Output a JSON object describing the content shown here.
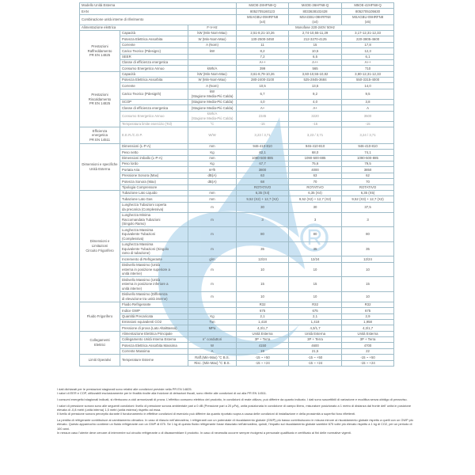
{
  "header": {
    "model_label": "Modello Unità Esterna",
    "models": [
      "M4OE-28HFN8-Q",
      "M4OE-36HFN8-Q",
      "M5OE-42HFN8-Q"
    ],
    "ean_label": "EAN",
    "eans": [
      "8052705160123",
      "8033638102428",
      "8052705105630"
    ],
    "combo_label": "Combinazione unità interne di riferimento",
    "combos": [
      "MSAGBU-09HRFN8\n(x4)",
      "MSAGBU-09HRFN8\n(x4)",
      "MSAGBU-09HRFN8\n(x5)"
    ],
    "power_label": "Alimentazione elettrica",
    "power_unit": "F-V-Hz",
    "power_value": "Monofase 220-240V 50Hz"
  },
  "sections": [
    {
      "title": "Prestazioni\nRaffreddamento\nPR EN 14825",
      "rows": [
        {
          "label": "Capacità",
          "unit": "kW (Min-Nom-Max)",
          "values": [
            "2,51-8,21-10,26",
            "2,74-10,55-11,29",
            "3,17-12,31-12,33"
          ]
        },
        {
          "label": "Potenza Elettrica Assorbita",
          "unit": "W (Min-Nom-Max)",
          "values": [
            "130-2500-3450",
            "212-3270-4125",
            "220-3805-4600"
          ]
        },
        {
          "label": "Corrente",
          "unit": "A (Nom)",
          "values": [
            "11",
            "15",
            "17,8"
          ]
        },
        {
          "label": "Carico Teorico (Pdesignc)",
          "unit": "kW",
          "values": [
            "8,2",
            "10,5",
            "12,3"
          ]
        },
        {
          "label": "SEER",
          "unit": "",
          "values": [
            "7,2",
            "6,5",
            "6,1"
          ]
        },
        {
          "label": "Classe di efficienza energetica",
          "unit": "",
          "values": [
            "A++",
            "A++",
            "A++"
          ]
        },
        {
          "label": "Consumo Energetico Annuo",
          "unit": "kWh/A",
          "values": [
            "399",
            "565",
            "710"
          ]
        }
      ]
    },
    {
      "title": "Prestazioni\nRiscaldamento\nPR EN 14825",
      "rows": [
        {
          "label": "Capacità",
          "unit": "kW (Min-Nom-Max)",
          "values": [
            "3,61-8,79-10,26",
            "3,60-10,55-10,82",
            "3,80-12,31-12,33"
          ]
        },
        {
          "label": "Potenza Elettrica Assorbita",
          "unit": "W (Min-Nom-Max)",
          "values": [
            "280-2400-3100",
            "525-2845-3684",
            "550-3315-4000"
          ]
        },
        {
          "label": "Corrente",
          "unit": "A (Nom)",
          "values": [
            "10,5",
            "13,5",
            "14,0"
          ]
        },
        {
          "label": "Carico Teorico (Pdesignh)",
          "unit": "kW\n(Stagione Media-Più Calda)",
          "values": [
            "6,7",
            "9,2",
            "9,5"
          ]
        },
        {
          "label": "SCOP",
          "unit": "(Stagione Media-Più Calda)",
          "values": [
            "4,0",
            "4,0",
            "3,8"
          ]
        },
        {
          "label": "Classe di efficienza energetica",
          "unit": "(Stagione Media-Più Calda)",
          "values": [
            "A+",
            "A+",
            "A"
          ]
        },
        {
          "label": "Consumo Energetico Annuo",
          "unit": "kWh/A\n(Stagione Media-Più Calda)",
          "values": [
            "2345",
            "3220",
            "3500"
          ],
          "light": true
        },
        {
          "label": "Temperatura limite esercizio (Tol)",
          "unit": "°C",
          "values": [
            "-15",
            "-15",
            "-15"
          ],
          "light": true
        }
      ]
    },
    {
      "title": "Efficienza\nenergetica\nPR EN 14511",
      "rows": [
        {
          "label": "E.E.R./C.O.P.",
          "unit": "W/W",
          "values": [
            "3,23 / 3,71",
            "3,23 / 3,71",
            "3,24 / 3,71"
          ],
          "light": true,
          "tall": true
        }
      ]
    },
    {
      "title": "Dimensioni e specifiche\nUnità Esterna",
      "rows": [
        {
          "label": "Dimensioni (L-P-A)",
          "unit": "mm",
          "values": [
            "946-410-810",
            "946-410-810",
            "946-410-810"
          ]
        },
        {
          "label": "Peso netto",
          "unit": "Kg",
          "values": [
            "62,1",
            "68,0",
            "74,1"
          ]
        },
        {
          "label": "Dimensioni imballo (L-P-A)",
          "unit": "mm",
          "values": [
            "1090-500-885",
            "1090-500-885",
            "1090-500-885"
          ]
        },
        {
          "label": "Peso lordo",
          "unit": "Kg",
          "values": [
            "67,7",
            "75,6",
            "79,5"
          ]
        },
        {
          "label": "Portata Aria",
          "unit": "m³/h",
          "values": [
            "3800",
            "4000",
            "3850"
          ]
        },
        {
          "label": "Pressione Sonora (Max)",
          "unit": "dB(A)",
          "values": [
            "63",
            "63",
            "62"
          ]
        },
        {
          "label": "Potenza Sonora (Max)",
          "unit": "dB(A)",
          "values": [
            "68",
            "70",
            "70"
          ]
        },
        {
          "label": "Tipologia Compressore",
          "unit": "",
          "values": [
            "ROTATIVO",
            "ROTATIVO",
            "ROTATIVO"
          ]
        }
      ]
    },
    {
      "title": "Dimensioni e Limitazioni\nCircuito Frigorifero",
      "rows": [
        {
          "label": "Tubazione Lato Liquido",
          "unit": "mm",
          "values": [
            "6,35 (X4)",
            "6,35 (X4)",
            "6,35 (X5)"
          ]
        },
        {
          "label": "Tubazione Lato Gas",
          "unit": "mm",
          "values": [
            "9,52 (X2) + 12,7 (X2)",
            "9,52 (X2) + 12,7 (X2)",
            "9,52 (X3) + 12,7 (X2)"
          ]
        },
        {
          "label": "Lunghezza Tubazioni coperta\nda precarica (Complessiva)",
          "unit": "m",
          "values": [
            "30",
            "30",
            "37,5"
          ]
        },
        {
          "label": "Lunghezza Minima\nRaccomandata Tubazioni\n(Singolo Ramo)",
          "unit": "m",
          "values": [
            "3",
            "3",
            "3"
          ]
        },
        {
          "label": "Lunghezza Massima\nEquivalente Tubazioni\n(Complessiva)",
          "unit": "m",
          "values": [
            "80",
            "80",
            "80"
          ]
        },
        {
          "label": "Lunghezza Massima\nEquivalente Tubazioni (Singolo\nramo di tubazione)",
          "unit": "m",
          "values": [
            "35",
            "35",
            "35"
          ]
        },
        {
          "label": "Incremento di Refrigerante",
          "unit": "g/m",
          "values": [
            "12/24",
            "12/24",
            "12/24"
          ]
        },
        {
          "label": "Dislivello Massimo (Unità\nesterna in posizione superiore a\nunità interne)",
          "unit": "m",
          "values": [
            "10",
            "10",
            "10"
          ]
        },
        {
          "label": "Dislivello Massimo (Unità\nesterna in posizione inferiore a\nunità interne)",
          "unit": "m",
          "values": [
            "15",
            "15",
            "15"
          ]
        },
        {
          "label": "Dislivello Massimo (Differenza\ndi elevazione tra unità interne)",
          "unit": "m",
          "values": [
            "10",
            "10",
            "10"
          ]
        }
      ]
    },
    {
      "title": "Fluido Frigorifero",
      "rows": [
        {
          "label": "Fluido Refrigerante",
          "unit": "",
          "values": [
            "R32",
            "R32",
            "R32"
          ]
        },
        {
          "label": "Indice GWP",
          "unit": "",
          "values": [
            "675",
            "675",
            "675"
          ]
        },
        {
          "label": "Quantità Precaricata",
          "unit": "Kg",
          "values": [
            "2,1",
            "2,1",
            "2,9"
          ]
        },
        {
          "label": "Emissioni equivalenti CO2",
          "unit": "Ton",
          "values": [
            "1,418",
            "1,418",
            "1,958"
          ]
        },
        {
          "label": "Pressione di prova (Lato Alta/Bassa)",
          "unit": "MPa",
          "values": [
            "4,3/1,7",
            "4,3/1,7",
            "4,3/1,7"
          ]
        }
      ]
    },
    {
      "title": "Collegamenti\nElettrici",
      "rows": [
        {
          "label": "Alimentazione Elettrica Principale",
          "unit": "",
          "values": [
            "Unità Esterna",
            "Unità Esterna",
            "Unità Esterna"
          ]
        },
        {
          "label": "Collegamento Unità Interna Esterna",
          "unit": "n° conduttori",
          "values": [
            "3P + Terra",
            "3P + Terra",
            "3P + Terra"
          ]
        },
        {
          "label": "Potenza Elettrica Assorbita Massima",
          "unit": "W",
          "values": [
            "4150",
            "4600",
            "4700"
          ]
        },
        {
          "label": "Corrente Massima",
          "unit": "A",
          "values": [
            "19",
            "21,5",
            "22"
          ]
        }
      ]
    },
    {
      "title": "Limiti Operativi",
      "rows": [
        {
          "label": "Temperature Esterne",
          "label_span": 2,
          "unit": "Raff.(Min-Max) °C B.S.",
          "values": [
            "-15 ~ +50",
            "-15 ~ +50",
            "-15 ~ +50"
          ]
        },
        {
          "unit": "Risc. (Min-Max) °C B.S.",
          "values": [
            "-15 ~ +24",
            "-15 ~ +24",
            "-15 ~ +24"
          ]
        }
      ]
    }
  ],
  "notes": [
    "I dati dichiarati per le prestazioni stagionali sono relativi alle condizioni previste nella PR EN 14825.\nI valori di EER e COP, utilizzabili esclusivamente per le finalità rivolte alla fruizione di detrazioni fiscali, sono riferite alle condizioni di cui alla PR EN 14511.",
    "I consumi energetici stagionali indicati, si riferiscono a cicli armonizzati di prova. L'effettivo consumo elettrico del prodotto, in condizioni di reale utilizzo, può differire da quanto indicato. I dati sono suscettibili di variazione e modifica senza obbligo di preavviso.",
    "I valori di pressione sonora sono alle seguenti condizioni: livello di pressione sonora ambientale pari a 0 dB (Pressione pari a 20 μPa), unità posizionata in condizione di campo libero, misuratore posizionato a 1 metro di distanza dal fronte dell' unità in posizione elevata di -0,8 metri (unità interna) 1,5 metri (unità esterna) rispetto ad essa.\nIl livello di pressione sonora percepito durante il funzionamento in effettive condizioni di esercizio può differire da quanto riportato sopra a causa delle condizioni di installazione e della prossimità a superfici fono riflettenti.",
    "La perdita di refrigerante contribuisce al cambiamento climatico. In caso di rilascio nell'atmosfera, i refrigeranti con un potenziale di riscaldamento globale (GWP) più basso contribuiscono in misura minore al riscaldamento globale rispetto a quelli con un GWP più elevato. Questo apparecchio contiene un fluido refrigerante con un GWP di 675. Se 1 kg di questo fluido refrigerante fosse rilasciato nell'atmosfera, quindi, l'impatto sul riscaldamento globale sarebbe 675 volte più elevato rispetto a 1 kg di CO2, per un periodo di 100 anni.\nIn nessun caso l'utente deve cercare di intervenire sul circuito refrigerante o di disassemblare il prodotto. In caso di necessità occorre sempre rivolgersi a personale qualificato e certificato ai fini delle normative vigenti."
  ],
  "colors": {
    "watermark": "#a7d0ea",
    "border": "#9fbcc8",
    "text": "#555555"
  }
}
